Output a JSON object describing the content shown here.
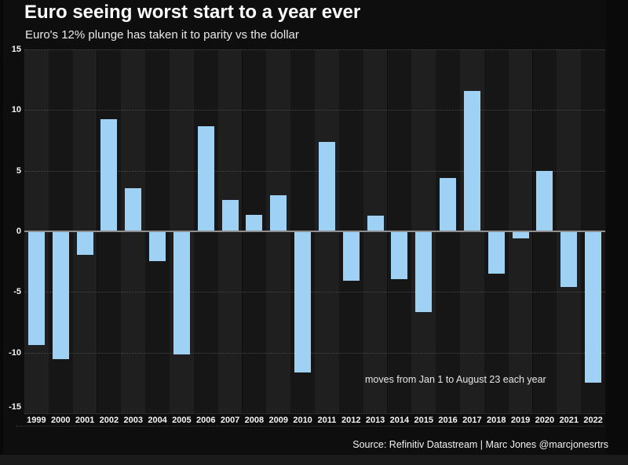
{
  "chart_data": {
    "type": "bar",
    "title": "Euro seeing worst start to a year ever",
    "subtitle": "Euro's 12% plunge has taken it to parity vs the dollar",
    "categories": [
      "1999",
      "2000",
      "2001",
      "2002",
      "2003",
      "2004",
      "2005",
      "2006",
      "2007",
      "2008",
      "2009",
      "2010",
      "2011",
      "2012",
      "2013",
      "2014",
      "2015",
      "2016",
      "2017",
      "2018",
      "2019",
      "2020",
      "2021",
      "2022"
    ],
    "values": [
      -9.3,
      -10.5,
      -1.9,
      9.2,
      3.5,
      -2.4,
      -10.1,
      8.6,
      2.5,
      1.3,
      2.9,
      -11.6,
      7.3,
      -4.0,
      1.2,
      -3.9,
      -6.6,
      4.3,
      11.5,
      -3.4,
      -0.5,
      4.9,
      -4.5,
      -12.4
    ],
    "ylim": [
      -15,
      15
    ],
    "yticks": [
      15,
      10,
      5,
      0,
      -5,
      -10,
      -15
    ],
    "xlabel": "",
    "ylabel": "",
    "grid": "dotted horizontal",
    "legend": "none",
    "annotation": "moves from Jan 1 to August 23 each year",
    "source": "Source: Refinitiv Datastream | Marc Jones @marcjonesrtrs",
    "colors": {
      "bar": "#9fd1f5",
      "zero_line": "#8f8f8f",
      "stripe_light": "#1f1f1f",
      "stripe_dark": "#161616",
      "background": "#0e0e0e",
      "title_text": "#ffffff",
      "label_text": "#f5f5f5"
    }
  }
}
